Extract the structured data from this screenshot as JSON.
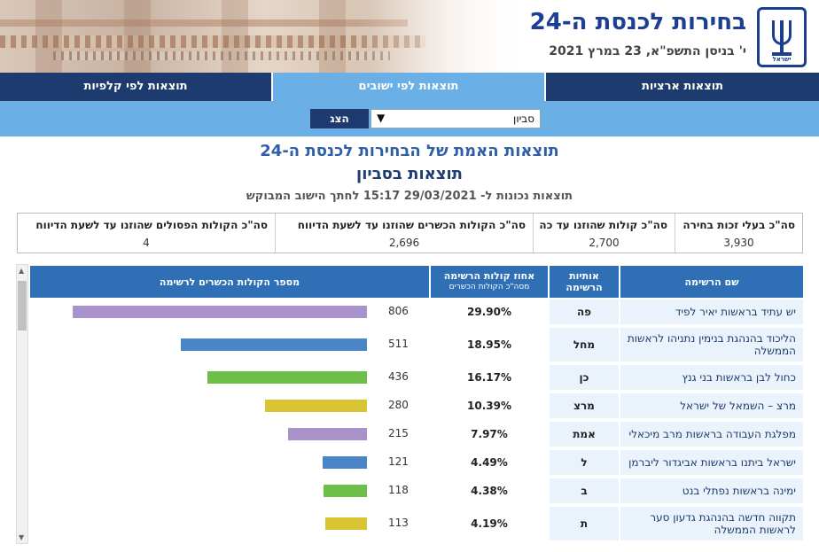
{
  "header": {
    "title": "בחירות לכנסת ה-24",
    "date": "י' בניסן התשפ\"א, 23 במרץ 2021",
    "emblem_label": "ישראל"
  },
  "nav": {
    "tabs": [
      {
        "label": "תוצאות ארציות",
        "active": false
      },
      {
        "label": "תוצאות לפי ישובים",
        "active": true
      },
      {
        "label": "תוצאות לפי קלפיות",
        "active": false
      }
    ]
  },
  "search": {
    "selected": "סביון",
    "button": "הצג"
  },
  "page": {
    "title": "תוצאות האמת של הבחירות לכנסת ה-24",
    "subtitle": "תוצאות בסביון",
    "updated": "תוצאות נכונות ל- 29/03/2021 15:17 לחתך הישוב המבוקש"
  },
  "summary": [
    {
      "label": "סה\"כ בעלי זכות בחירה",
      "value": "3,930"
    },
    {
      "label": "סה\"כ קולות שהוזנו עד כה",
      "value": "2,700"
    },
    {
      "label": "סה\"כ הקולות הכשרים שהוזנו עד לשעת הדיווח",
      "value": "2,696"
    },
    {
      "label": "סה\"כ הקולות הפסולים שהוזנו עד לשעת הדיווח",
      "value": "4"
    }
  ],
  "table": {
    "headers": {
      "name": "שם הרשימה",
      "letters": "אותיות הרשימה",
      "pct": "אחוז קולות הרשימה",
      "pct_sub": "מסה\"כ הקולות הכשרים",
      "votes": "מספר הקולות הכשרים לרשימה"
    },
    "max_votes": 806,
    "rows": [
      {
        "name": "יש עתיד בראשות יאיר לפיד",
        "letters": "פה",
        "pct": "29.90%",
        "votes": 806,
        "votes_text": "806",
        "color": "#a992c9"
      },
      {
        "name": "הליכוד בהנהגת בנימין נתניהו לראשות הממשלה",
        "letters": "מחל",
        "pct": "18.95%",
        "votes": 511,
        "votes_text": "511",
        "color": "#4a86c7"
      },
      {
        "name": "כחול לבן בראשות בני גנץ",
        "letters": "כן",
        "pct": "16.17%",
        "votes": 436,
        "votes_text": "436",
        "color": "#6cbf47"
      },
      {
        "name": "מרצ – השמאל של ישראל",
        "letters": "מרצ",
        "pct": "10.39%",
        "votes": 280,
        "votes_text": "280",
        "color": "#d9c531"
      },
      {
        "name": "מפלגת העבודה בראשות מרב מיכאלי",
        "letters": "אמת",
        "pct": "7.97%",
        "votes": 215,
        "votes_text": "215",
        "color": "#a992c9"
      },
      {
        "name": "ישראל ביתנו בראשות אביגדור ליברמן",
        "letters": "ל",
        "pct": "4.49%",
        "votes": 121,
        "votes_text": "121",
        "color": "#4a86c7"
      },
      {
        "name": "ימינה בראשות נפתלי בנט",
        "letters": "ב",
        "pct": "4.38%",
        "votes": 118,
        "votes_text": "118",
        "color": "#6cbf47"
      },
      {
        "name": "תקווה חדשה בהנהגת גדעון סער לראשות הממשלה",
        "letters": "ת",
        "pct": "4.19%",
        "votes": 113,
        "votes_text": "113",
        "color": "#d9c531"
      }
    ]
  }
}
